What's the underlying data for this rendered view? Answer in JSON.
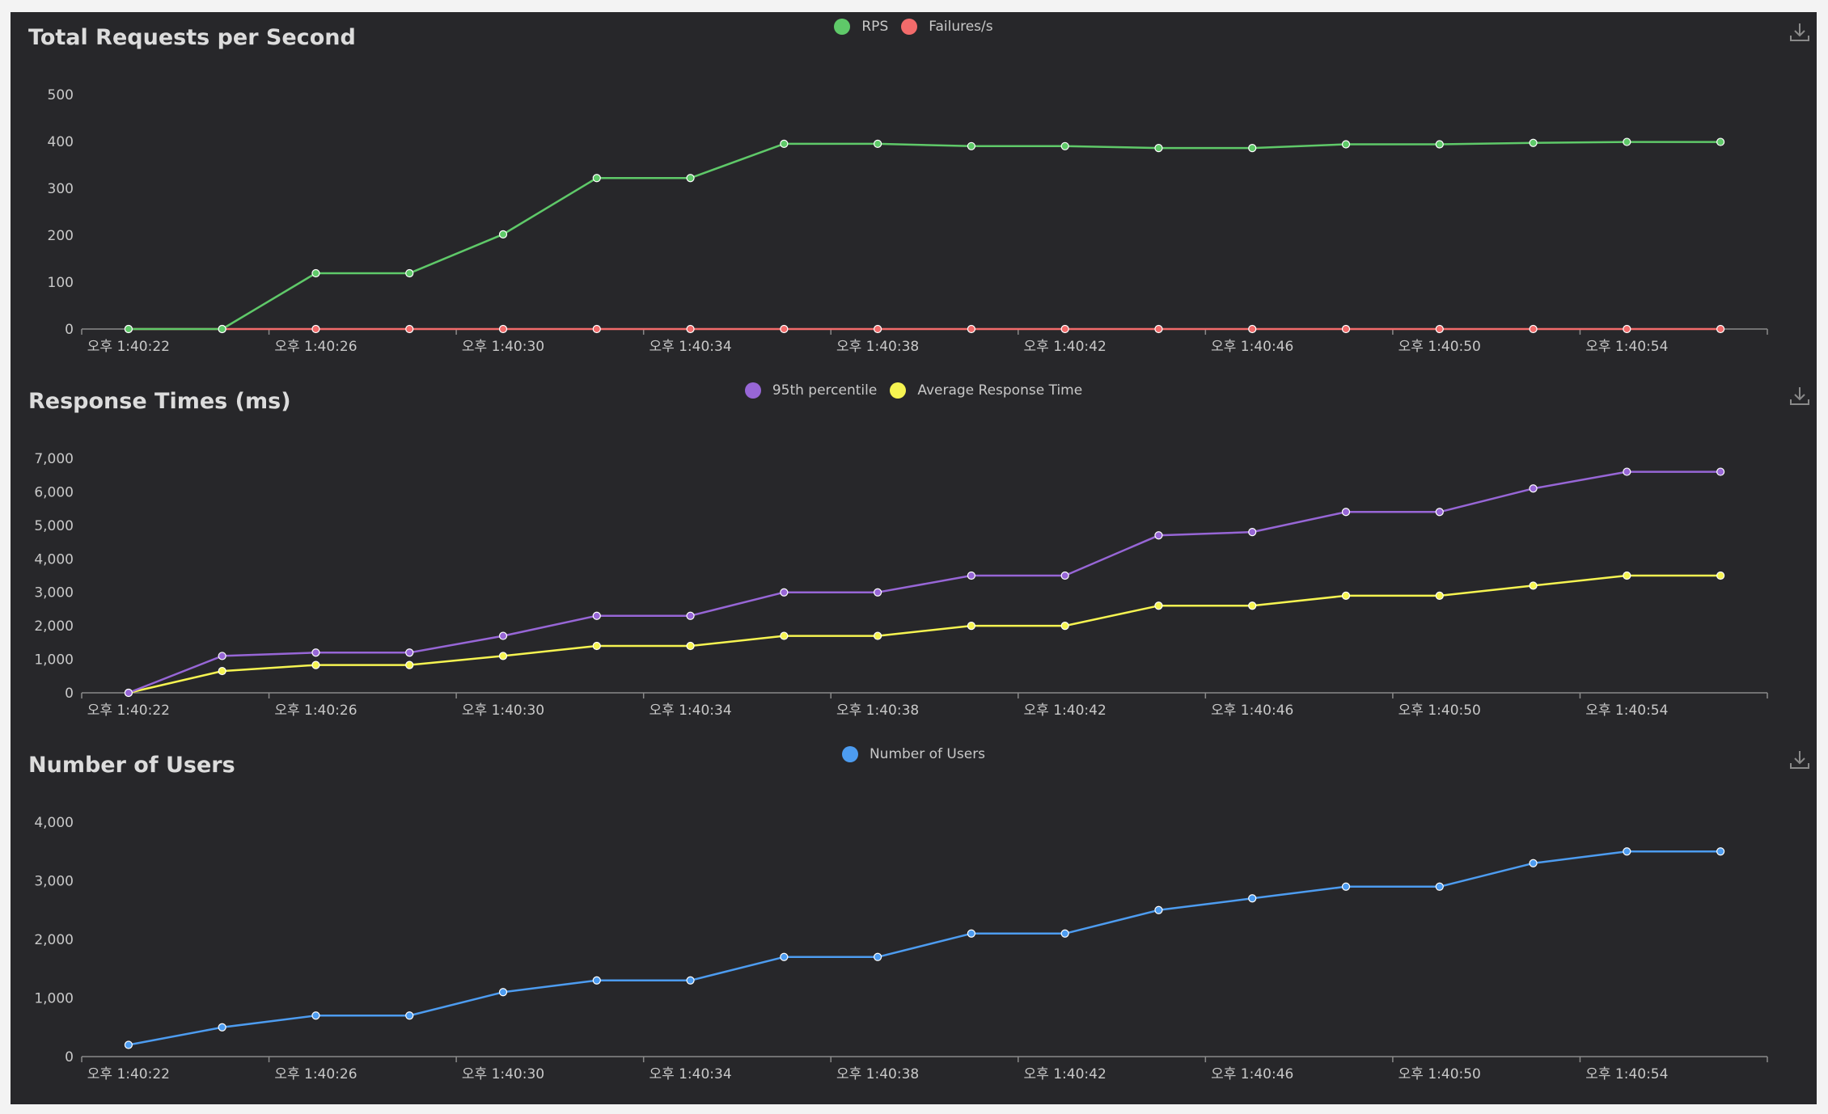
{
  "chart_data": [
    {
      "type": "line",
      "title": "Total Requests per Second",
      "x_tick_labels": [
        "오후 1:40:22",
        "오후 1:40:26",
        "오후 1:40:30",
        "오후 1:40:34",
        "오후 1:40:38",
        "오후 1:40:42",
        "오후 1:40:46",
        "오후 1:40:50",
        "오후 1:40:54"
      ],
      "ylim": [
        0,
        500
      ],
      "y_ticks": [
        0,
        100,
        200,
        300,
        400,
        500
      ],
      "y_tick_labels": [
        "0",
        "100",
        "200",
        "300",
        "400",
        "500"
      ],
      "legend_position": "top-center",
      "series": [
        {
          "name": "RPS",
          "color": "#5fc969",
          "values": [
            0,
            0,
            119,
            119,
            202,
            322,
            322,
            395,
            395,
            390,
            390,
            386,
            386,
            394,
            394,
            397,
            399,
            399
          ]
        },
        {
          "name": "Failures/s",
          "color": "#f26b6b",
          "values": [
            0,
            0,
            0,
            0,
            0,
            0,
            0,
            0,
            0,
            0,
            0,
            0,
            0,
            0,
            0,
            0,
            0,
            0
          ]
        }
      ]
    },
    {
      "type": "line",
      "title": "Response Times (ms)",
      "x_tick_labels": [
        "오후 1:40:22",
        "오후 1:40:26",
        "오후 1:40:30",
        "오후 1:40:34",
        "오후 1:40:38",
        "오후 1:40:42",
        "오후 1:40:46",
        "오후 1:40:50",
        "오후 1:40:54"
      ],
      "ylim": [
        0,
        7000
      ],
      "y_ticks": [
        0,
        1000,
        2000,
        3000,
        4000,
        5000,
        6000,
        7000
      ],
      "y_tick_labels": [
        "0",
        "1,000",
        "2,000",
        "3,000",
        "4,000",
        "5,000",
        "6,000",
        "7,000"
      ],
      "legend_position": "top-center",
      "series": [
        {
          "name": "95th percentile",
          "color": "#9766d6",
          "values": [
            0,
            1100,
            1200,
            1200,
            1700,
            2300,
            2300,
            3000,
            3000,
            3500,
            3500,
            4700,
            4800,
            5400,
            5400,
            6100,
            6600,
            6600
          ]
        },
        {
          "name": "Average Response Time",
          "color": "#f6f451",
          "values": [
            0,
            650,
            830,
            830,
            1100,
            1400,
            1400,
            1700,
            1700,
            2000,
            2000,
            2600,
            2600,
            2900,
            2900,
            3200,
            3500,
            3500
          ]
        }
      ]
    },
    {
      "type": "line",
      "title": "Number of Users",
      "x_tick_labels": [
        "오후 1:40:22",
        "오후 1:40:26",
        "오후 1:40:30",
        "오후 1:40:34",
        "오후 1:40:38",
        "오후 1:40:42",
        "오후 1:40:46",
        "오후 1:40:50",
        "오후 1:40:54"
      ],
      "ylim": [
        0,
        4000
      ],
      "y_ticks": [
        0,
        1000,
        2000,
        3000,
        4000
      ],
      "y_tick_labels": [
        "0",
        "1,000",
        "2,000",
        "3,000",
        "4,000"
      ],
      "legend_position": "top-center",
      "series": [
        {
          "name": "Number of Users",
          "color": "#4d9cf0",
          "values": [
            200,
            500,
            700,
            700,
            1100,
            1300,
            1300,
            1700,
            1700,
            2100,
            2100,
            2500,
            2700,
            2900,
            2900,
            3300,
            3500,
            3500
          ]
        }
      ]
    }
  ],
  "colors": {
    "background": "#27272a",
    "axis": "#8a8a8a",
    "text": "#c8c8c8",
    "title": "#dcdcdc"
  },
  "icons": {
    "download": "download-icon"
  }
}
